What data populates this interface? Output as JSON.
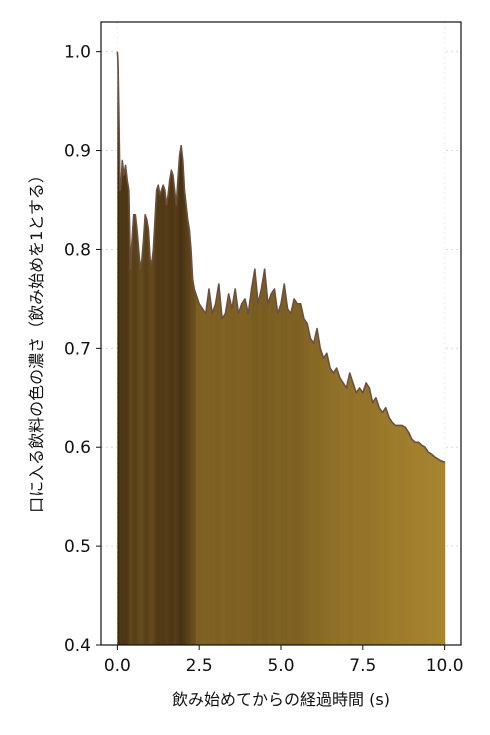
{
  "chart_data": {
    "type": "area",
    "title": "",
    "xlabel": "飲み始めてからの経過時間 (s)",
    "ylabel": "口に入る飲料の色の濃さ（飲み始めを1とする）",
    "xlim": [
      -0.5,
      10.5
    ],
    "ylim": [
      0.4,
      1.03
    ],
    "xticks": [
      0.0,
      2.5,
      5.0,
      7.5,
      10.0
    ],
    "xtick_labels": [
      "0.0",
      "2.5",
      "5.0",
      "7.5",
      "10.0"
    ],
    "yticks": [
      0.4,
      0.5,
      0.6,
      0.7,
      0.8,
      0.9,
      1.0
    ],
    "ytick_labels": [
      "0.4",
      "0.5",
      "0.6",
      "0.7",
      "0.8",
      "0.9",
      "1.0"
    ],
    "grid": true,
    "legend": "none",
    "fill_note": "area under curve filled with vertical bars whose colour follows the beverage colour intensity (dark brown to golden)",
    "colors": {
      "dark_fill": "#3e2a10",
      "light_fill": "#a8852f",
      "line": "#6b5040",
      "grid": "#d9d9d9"
    },
    "series": [
      {
        "x": [
          0.0,
          0.02,
          0.05,
          0.08,
          0.12,
          0.15,
          0.2,
          0.25,
          0.3,
          0.35,
          0.4,
          0.45,
          0.5,
          0.55,
          0.6,
          0.65,
          0.7,
          0.75,
          0.8,
          0.85,
          0.9,
          0.95,
          1.0,
          1.05,
          1.1,
          1.15,
          1.2,
          1.25,
          1.3,
          1.35,
          1.4,
          1.45,
          1.5,
          1.55,
          1.6,
          1.65,
          1.7,
          1.75,
          1.8,
          1.85,
          1.9,
          1.95,
          2.0,
          2.05,
          2.1,
          2.15,
          2.2,
          2.25,
          2.3,
          2.35,
          2.4,
          2.5,
          2.6,
          2.7,
          2.8,
          2.9,
          3.0,
          3.1,
          3.2,
          3.3,
          3.4,
          3.5,
          3.6,
          3.7,
          3.8,
          3.9,
          4.0,
          4.1,
          4.2,
          4.3,
          4.4,
          4.5,
          4.6,
          4.7,
          4.8,
          4.9,
          5.0,
          5.1,
          5.2,
          5.3,
          5.4,
          5.5,
          5.6,
          5.7,
          5.8,
          5.9,
          6.0,
          6.1,
          6.2,
          6.3,
          6.4,
          6.5,
          6.6,
          6.7,
          6.8,
          6.9,
          7.0,
          7.1,
          7.2,
          7.3,
          7.4,
          7.5,
          7.6,
          7.7,
          7.8,
          7.9,
          8.0,
          8.1,
          8.2,
          8.3,
          8.4,
          8.5,
          8.6,
          8.7,
          8.8,
          8.9,
          9.0,
          9.1,
          9.2,
          9.3,
          9.4,
          9.5,
          9.6,
          9.7,
          9.8,
          9.9,
          10.0
        ],
        "values": [
          1.0,
          0.99,
          0.93,
          0.86,
          0.87,
          0.89,
          0.875,
          0.885,
          0.87,
          0.86,
          0.78,
          0.81,
          0.835,
          0.835,
          0.82,
          0.8,
          0.78,
          0.79,
          0.81,
          0.835,
          0.83,
          0.82,
          0.79,
          0.785,
          0.8,
          0.83,
          0.86,
          0.865,
          0.855,
          0.86,
          0.865,
          0.86,
          0.845,
          0.855,
          0.87,
          0.88,
          0.875,
          0.86,
          0.845,
          0.87,
          0.895,
          0.905,
          0.89,
          0.86,
          0.845,
          0.83,
          0.82,
          0.8,
          0.77,
          0.76,
          0.755,
          0.745,
          0.74,
          0.735,
          0.76,
          0.735,
          0.745,
          0.765,
          0.73,
          0.735,
          0.755,
          0.74,
          0.76,
          0.735,
          0.745,
          0.75,
          0.735,
          0.76,
          0.78,
          0.745,
          0.76,
          0.78,
          0.745,
          0.755,
          0.76,
          0.735,
          0.745,
          0.765,
          0.74,
          0.735,
          0.75,
          0.745,
          0.745,
          0.73,
          0.725,
          0.71,
          0.705,
          0.72,
          0.7,
          0.69,
          0.695,
          0.68,
          0.675,
          0.68,
          0.67,
          0.665,
          0.66,
          0.675,
          0.665,
          0.655,
          0.66,
          0.655,
          0.665,
          0.66,
          0.645,
          0.65,
          0.64,
          0.635,
          0.64,
          0.63,
          0.625,
          0.622,
          0.622,
          0.622,
          0.62,
          0.615,
          0.608,
          0.605,
          0.605,
          0.602,
          0.6,
          0.595,
          0.593,
          0.59,
          0.588,
          0.586,
          0.585
        ]
      }
    ]
  }
}
